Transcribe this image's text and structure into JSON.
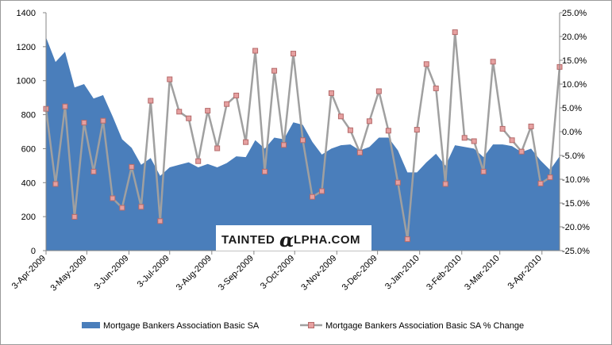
{
  "chart_data": {
    "type": "area",
    "title": "",
    "left_axis": {
      "ylim": [
        0,
        1400
      ],
      "ticks": [
        "0",
        "200",
        "400",
        "600",
        "800",
        "1000",
        "1200",
        "1400"
      ]
    },
    "right_axis": {
      "ylim": [
        -25,
        25
      ],
      "ticks": [
        "-25.0%",
        "-20.0%",
        "-15.0%",
        "-10.0%",
        "-5.0%",
        "0.0%",
        "5.0%",
        "10.0%",
        "15.0%",
        "20.0%",
        "25.0%"
      ]
    },
    "x_tick_labels": [
      "3-Apr-2009",
      "3-May-2009",
      "3-Jun-2009",
      "3-Jul-2009",
      "3-Aug-2009",
      "3-Sep-2009",
      "3-Oct-2009",
      "3-Nov-2009",
      "3-Dec-2009",
      "3-Jan-2010",
      "3-Feb-2010",
      "3-Mar-2010",
      "3-Apr-2010"
    ],
    "x_start": "2009-04-03",
    "x_step_days": 7,
    "grid": false,
    "legend_position": "bottom",
    "series": [
      {
        "name": "Mortgage Bankers Association Basic SA",
        "type": "area",
        "axis": "left",
        "color": "#4a7ebb",
        "values": [
          1255,
          1110,
          1170,
          960,
          980,
          895,
          915,
          790,
          655,
          605,
          505,
          545,
          440,
          490,
          505,
          520,
          490,
          510,
          490,
          515,
          555,
          550,
          650,
          600,
          665,
          655,
          755,
          740,
          640,
          565,
          600,
          620,
          625,
          590,
          610,
          665,
          665,
          590,
          460,
          460,
          520,
          570,
          500,
          620,
          610,
          600,
          550,
          625,
          625,
          615,
          580,
          600,
          530,
          475,
          555
        ]
      },
      {
        "name": "Mortgage Bankers Association Basic SA % Change",
        "type": "line",
        "axis": "right",
        "color": "#a0a0a0",
        "marker_fill": "#e6a0a0",
        "values": [
          4.8,
          -11.0,
          5.3,
          -17.9,
          1.9,
          -8.4,
          2.3,
          -14.0,
          -16.0,
          -7.4,
          -15.8,
          6.5,
          -18.8,
          11.0,
          4.2,
          2.8,
          -6.2,
          4.4,
          -3.5,
          5.8,
          7.6,
          -2.2,
          17.0,
          -8.4,
          12.8,
          -2.8,
          16.4,
          -1.8,
          -13.7,
          -12.5,
          8.1,
          3.2,
          0.3,
          -4.4,
          2.2,
          8.5,
          0.2,
          -10.7,
          -22.6,
          0.4,
          14.2,
          9.1,
          -11.0,
          20.9,
          -1.3,
          -2.0,
          -8.4,
          14.7,
          0.6,
          -1.8,
          -4.2,
          1.1,
          -10.9,
          -9.6,
          13.6
        ]
      }
    ]
  },
  "watermark": {
    "prefix": "TAINTED",
    "alpha_char": "α",
    "suffix": "LPHA.COM"
  },
  "colors": {
    "area": "#4a7ebb",
    "line": "#a0a0a0",
    "marker_fill": "#e6a0a0",
    "marker_stroke": "#b46a6a"
  }
}
